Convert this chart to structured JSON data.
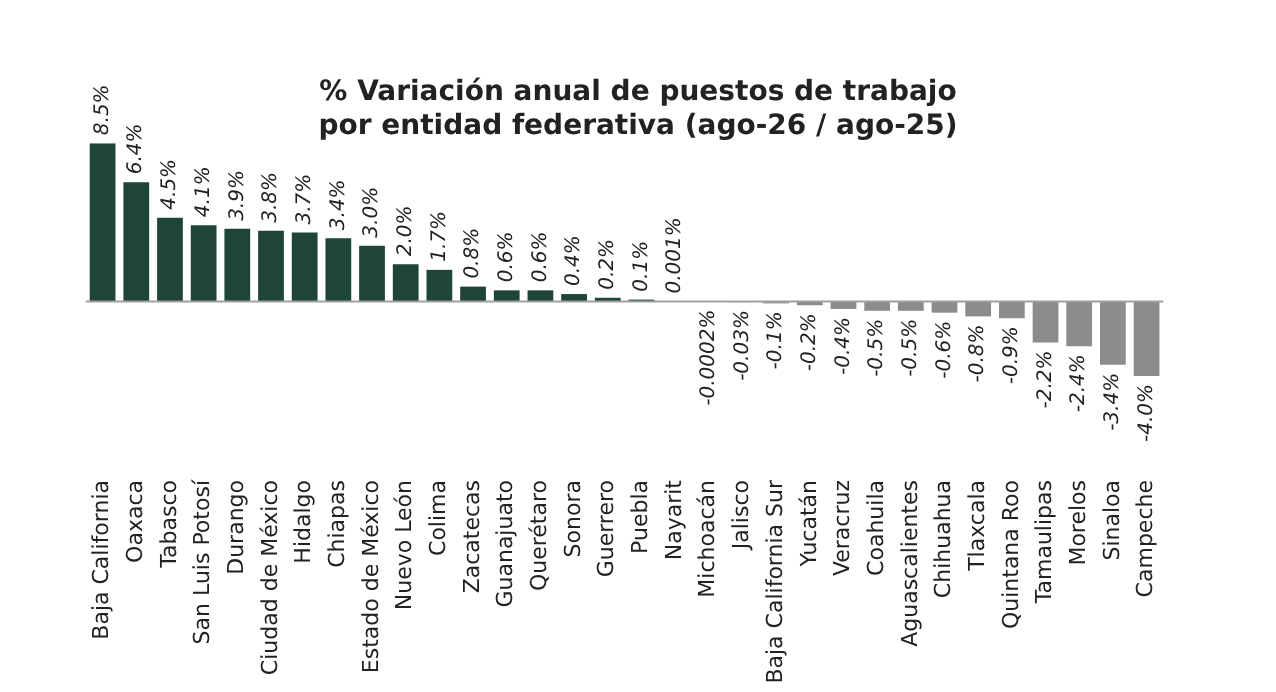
{
  "chart_data": {
    "type": "bar",
    "title": "% Variación anual de puestos de trabajo\npor entidad federativa (ago-26 / ago-25)",
    "categories": [
      "Baja California",
      "Oaxaca",
      "Tabasco",
      "San Luis Potosí",
      "Durango",
      "Ciudad de México",
      "Hidalgo",
      "Chiapas",
      "Estado de México",
      "Nuevo León",
      "Colima",
      "Zacatecas",
      "Guanajuato",
      "Querétaro",
      "Sonora",
      "Guerrero",
      "Puebla",
      "Nayarit",
      "Michoacán",
      "Jalisco",
      "Baja California Sur",
      "Yucatán",
      "Veracruz",
      "Coahuila",
      "Aguascalientes",
      "Chihuahua",
      "Tlaxcala",
      "Quintana Roo",
      "Tamaulipas",
      "Morelos",
      "Sinaloa",
      "Campeche"
    ],
    "values": [
      8.5,
      6.4,
      4.5,
      4.1,
      3.9,
      3.8,
      3.7,
      3.4,
      3.0,
      2.0,
      1.7,
      0.8,
      0.6,
      0.6,
      0.4,
      0.2,
      0.1,
      0.001,
      -0.0002,
      -0.03,
      -0.1,
      -0.2,
      -0.4,
      -0.5,
      -0.5,
      -0.6,
      -0.8,
      -0.9,
      -2.2,
      -2.4,
      -3.4,
      -4.0
    ],
    "value_labels": [
      "8.5%",
      "6.4%",
      "4.5%",
      "4.1%",
      "3.9%",
      "3.8%",
      "3.7%",
      "3.4%",
      "3.0%",
      "2.0%",
      "1.7%",
      "0.8%",
      "0.6%",
      "0.6%",
      "0.4%",
      "0.2%",
      "0.1%",
      "0.001%",
      "-0.0002%",
      "-0.03%",
      "-0.1%",
      "-0.2%",
      "-0.4%",
      "-0.5%",
      "-0.5%",
      "-0.6%",
      "-0.8%",
      "-0.9%",
      "-2.2%",
      "-2.4%",
      "-3.4%",
      "-4.0%"
    ],
    "colors": [
      "#1e4535",
      "#1e4535",
      "#1e4535",
      "#1e4535",
      "#1e4535",
      "#1e4535",
      "#1e4535",
      "#1e4535",
      "#1e4535",
      "#1e4535",
      "#1e4535",
      "#1e4535",
      "#1e4535",
      "#1e4535",
      "#1e4535",
      "#1e4535",
      "#1e4535",
      "#1e4535",
      "#8c8c8c",
      "#8c8c8c",
      "#8c8c8c",
      "#8c8c8c",
      "#8c8c8c",
      "#8c8c8c",
      "#8c8c8c",
      "#8c8c8c",
      "#8c8c8c",
      "#8c8c8c",
      "#8c8c8c",
      "#8c8c8c",
      "#8c8c8c",
      "#8c8c8c"
    ],
    "grid": false,
    "legend": false
  }
}
